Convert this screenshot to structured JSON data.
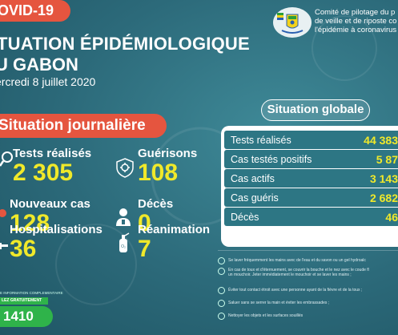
{
  "header": {
    "covid_banner": "OVID-19",
    "title_line1": "TUATION ÉPIDÉMIOLOGIQUE",
    "title_line2": "U GABON",
    "date": "ercredi 8 juillet 2020",
    "committee_line1": "Comité de pilotage du p",
    "committee_line2": "de veille et de riposte co",
    "committee_line3": "l'épidémie à coronavirus"
  },
  "daily": {
    "banner": "Situation journalière",
    "tests_label": "Tests réalisés",
    "tests_value": "2 305",
    "recoveries_label": "Guérisons",
    "recoveries_value": "108",
    "new_cases_label": "Nouveaux cas",
    "new_cases_value": "128",
    "deaths_label": "Décès",
    "deaths_value": "0",
    "hospital_label": "Hospitalisations",
    "hospital_value": "36",
    "icu_label": "Réanimation",
    "icu_value": "7"
  },
  "hotline": {
    "info": "E INFORMATION COMPLEMENTAIRE",
    "free_label": "LEZ GRATUITEMENT",
    "number": "1410"
  },
  "global": {
    "title": "Situation globale",
    "rows": [
      {
        "label": "Tests réalisés",
        "value": "44 383"
      },
      {
        "label": "Cas testés positifs",
        "value": "5 87"
      },
      {
        "label": "Cas actifs",
        "value": "3 143"
      },
      {
        "label": "Cas guéris",
        "value": "2 682"
      },
      {
        "label": "Décès",
        "value": "46"
      }
    ]
  },
  "advice": [
    "Se laver fréquemment les mains avec de l'eau et du savon ou un gel hydroalc",
    "En cas de toux et d'éternuement, se couvrir la bouche et le nez avec le coude fl",
    "un mouchoir. Jeter immédiatement le mouchoir et se laver les mains ;",
    "Éviter tout contact étroit avec une personne ayant de la fièvre et de la toux ;",
    "Saluer sans se serrer la main et éviter les embrassades ;",
    "Nettoyer les objets et les surfaces souillés"
  ],
  "colors": {
    "background": "#2f6f7f",
    "accent_red": "#e5553f",
    "value_yellow": "#f0e92a",
    "hotline_green": "#2fb34a",
    "table_row": "#2d7684"
  }
}
